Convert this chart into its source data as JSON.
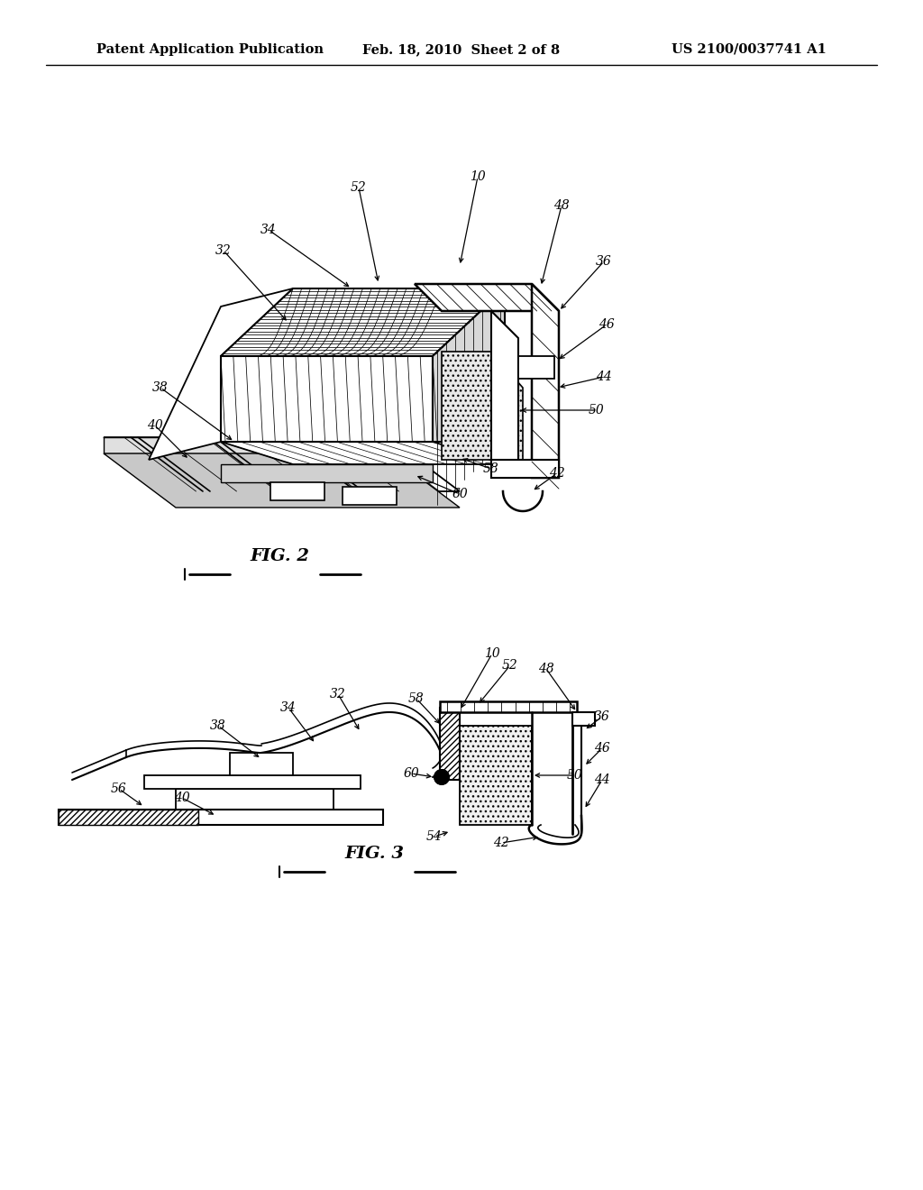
{
  "background_color": "#ffffff",
  "header_left": "Patent Application Publication",
  "header_center": "Feb. 18, 2010  Sheet 2 of 8",
  "header_right": "US 2100/0037741 A1",
  "line_color": "#000000"
}
